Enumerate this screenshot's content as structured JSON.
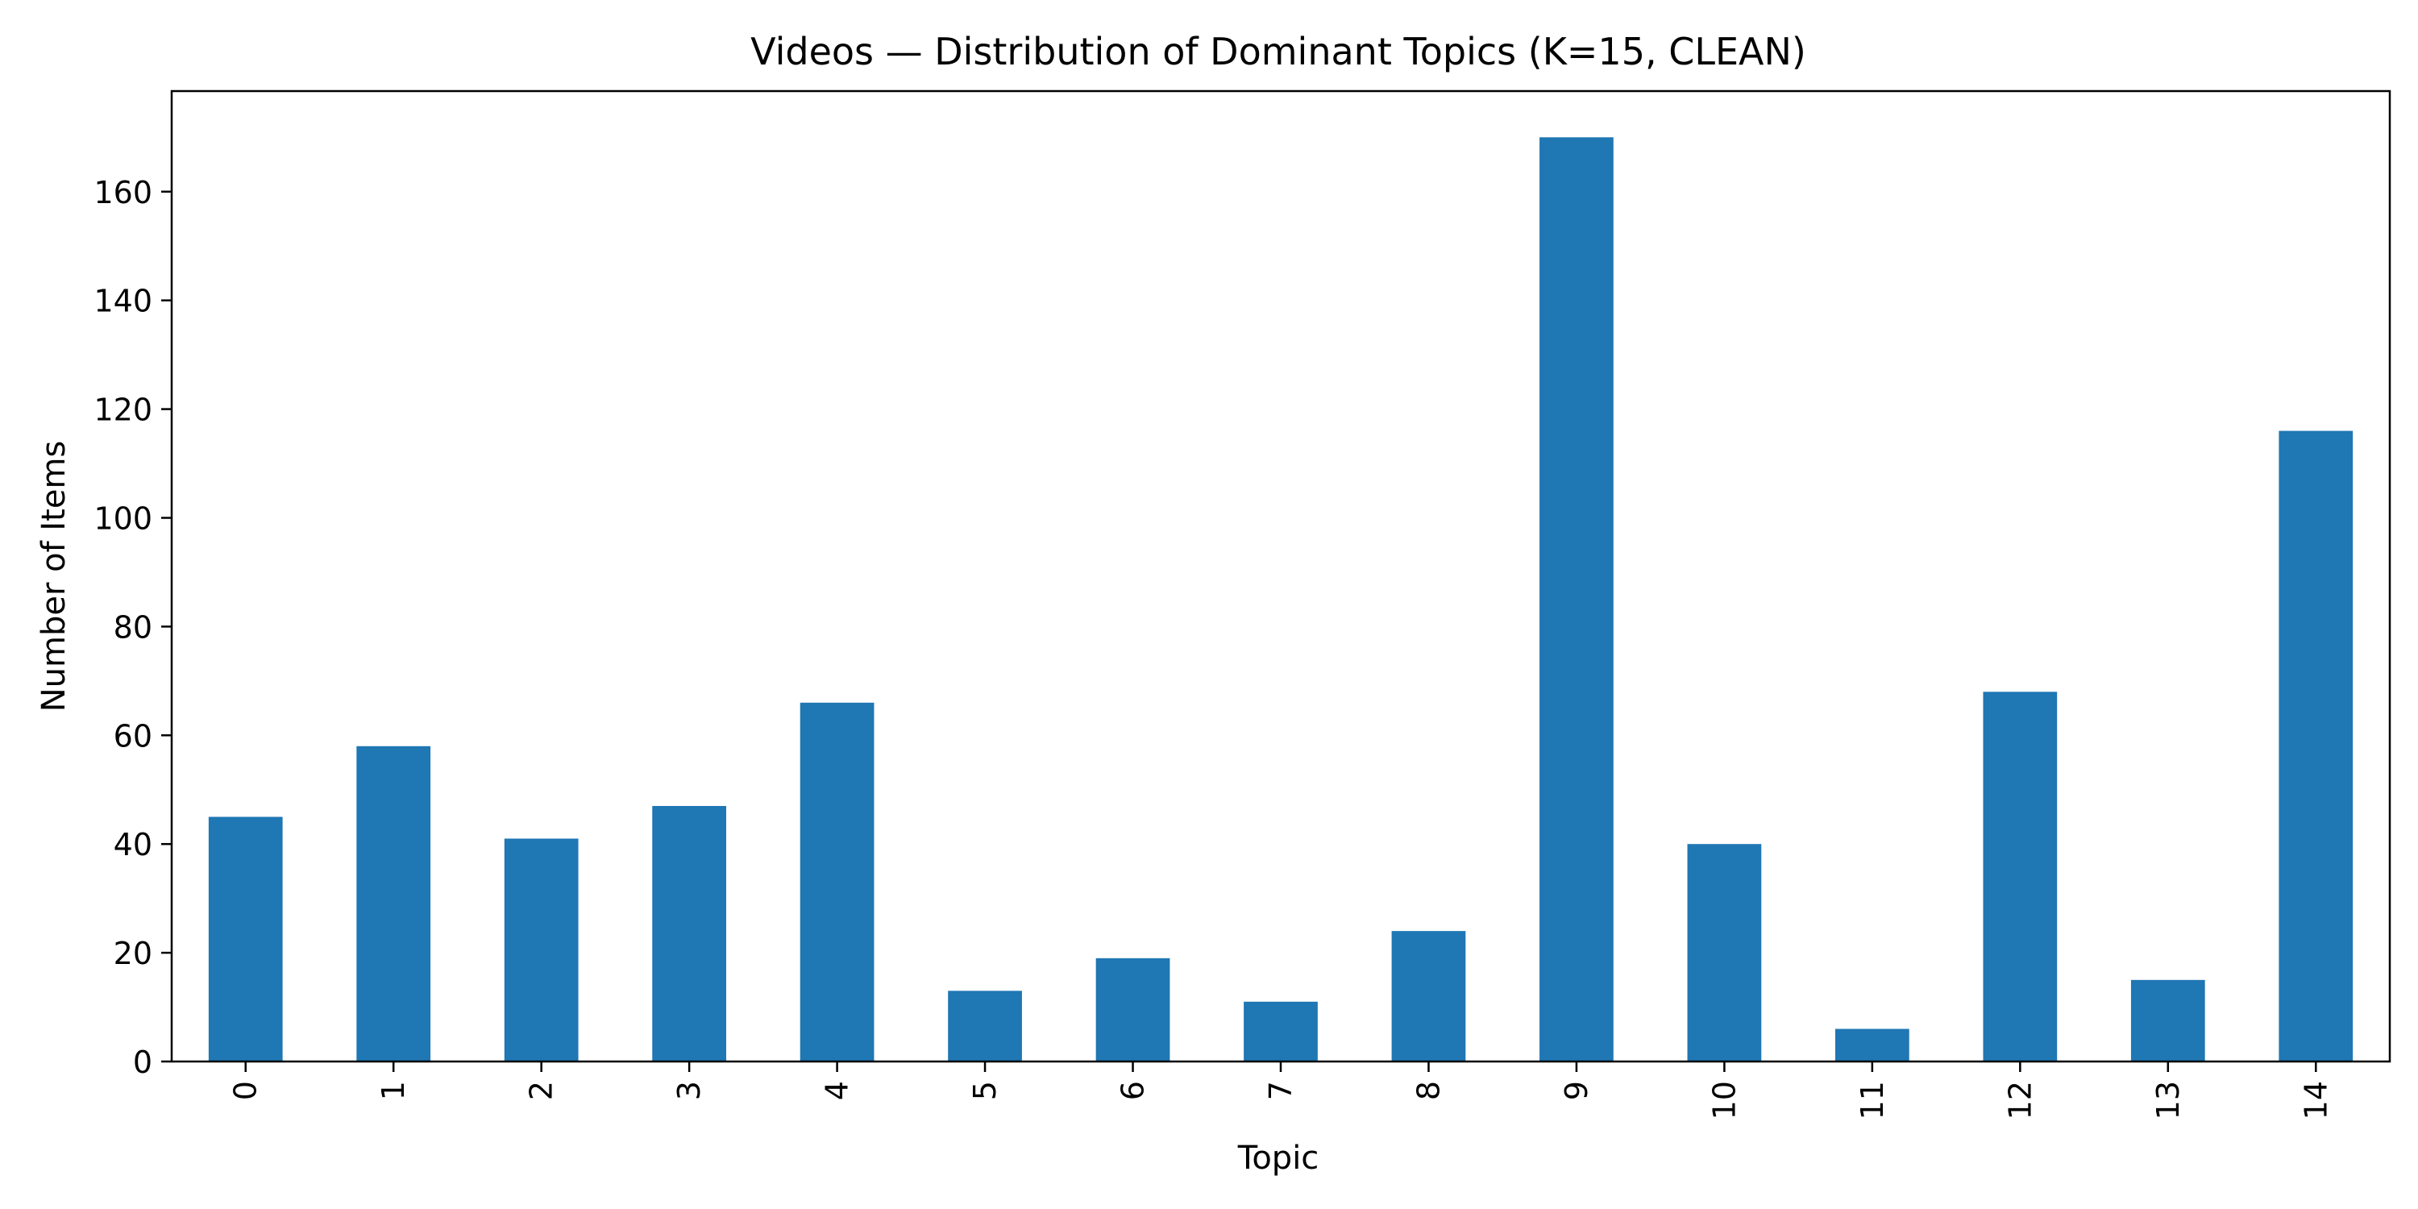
{
  "chart_data": {
    "type": "bar",
    "title": "Videos — Distribution of Dominant Topics (K=15, CLEAN)",
    "xlabel": "Topic",
    "ylabel": "Number of Items",
    "categories": [
      "0",
      "1",
      "2",
      "3",
      "4",
      "5",
      "6",
      "7",
      "8",
      "9",
      "10",
      "11",
      "12",
      "13",
      "14"
    ],
    "values": [
      45,
      58,
      41,
      47,
      66,
      13,
      19,
      11,
      24,
      170,
      40,
      6,
      68,
      15,
      116
    ],
    "yticks": [
      0,
      20,
      40,
      60,
      80,
      100,
      120,
      140,
      160
    ],
    "ylim": [
      0,
      178.5
    ],
    "x_tick_rotation": "vertical",
    "bar_color": "#1f77b4",
    "grid": false,
    "legend": false
  }
}
